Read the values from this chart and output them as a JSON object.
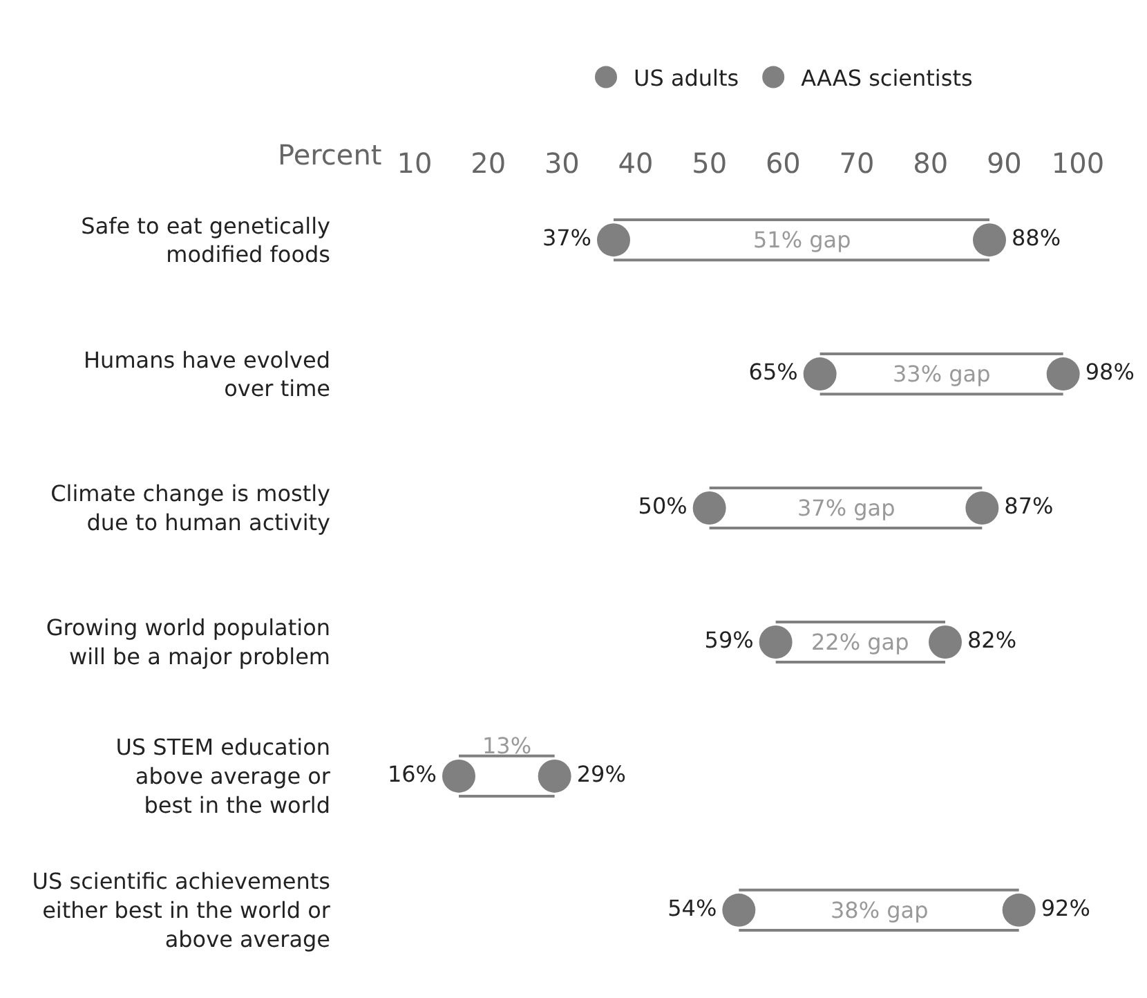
{
  "chart_data": {
    "type": "scatter",
    "orientation": "horizontal",
    "xlabel": "Percent",
    "categories": [
      "Safe to eat genetically\nmodified foods",
      "Humans have evolved\nover time",
      "Climate change is mostly\ndue to human activity",
      "Growing world population\nwill be a major problem",
      "US STEM education\nabove average or\nbest in the world",
      "US scientific achievements\neither best in the world or\nabove average"
    ],
    "series": [
      {
        "name": "US adults",
        "color": "#808080",
        "values": [
          37,
          65,
          50,
          59,
          16,
          54
        ],
        "value_labels": [
          "37%",
          "65%",
          "50%",
          "59%",
          "16%",
          "54%"
        ]
      },
      {
        "name": "AAAS scientists",
        "color": "#808080",
        "values": [
          88,
          98,
          87,
          82,
          29,
          92
        ],
        "value_labels": [
          "88%",
          "98%",
          "87%",
          "82%",
          "29%",
          "92%"
        ]
      }
    ],
    "annotations": [
      "51% gap",
      "33% gap",
      "37% gap",
      "22% gap",
      "13%",
      "38% gap"
    ],
    "xlim": [
      10,
      100
    ],
    "xticks": [
      10,
      20,
      30,
      40,
      50,
      60,
      70,
      80,
      90,
      100
    ],
    "grid": false,
    "legend": "top",
    "marker": "circle"
  }
}
